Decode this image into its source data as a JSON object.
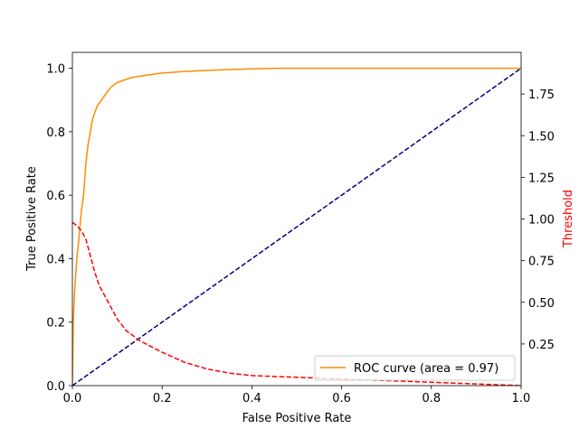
{
  "chart_data": {
    "type": "line",
    "title": "",
    "xlabel": "False Positive Rate",
    "ylabel": "True Positive Rate",
    "y2label": "Threshold",
    "xlim": [
      0.0,
      1.0
    ],
    "ylim": [
      0.0,
      1.05
    ],
    "y2lim": [
      0.0,
      2.0
    ],
    "x_ticks": [
      "0.0",
      "0.2",
      "0.4",
      "0.6",
      "0.8",
      "1.0"
    ],
    "y_ticks": [
      "0.0",
      "0.2",
      "0.4",
      "0.6",
      "0.8",
      "1.0"
    ],
    "y2_ticks": [
      "0.25",
      "0.50",
      "0.75",
      "1.00",
      "1.25",
      "1.50",
      "1.75"
    ],
    "grid": false,
    "legend_position": "lower-right",
    "series": [
      {
        "name": "ROC curve (area = 0.97)",
        "axis": "left",
        "color": "#ff8c00",
        "style": "solid",
        "x": [
          0.0,
          0.002,
          0.005,
          0.01,
          0.015,
          0.02,
          0.025,
          0.03,
          0.035,
          0.04,
          0.045,
          0.05,
          0.055,
          0.06,
          0.07,
          0.08,
          0.09,
          0.1,
          0.11,
          0.12,
          0.13,
          0.15,
          0.2,
          0.25,
          0.3,
          0.35,
          0.4,
          0.45,
          0.5,
          0.6,
          0.7,
          0.8,
          0.9,
          1.0
        ],
        "y": [
          0.0,
          0.2,
          0.3,
          0.4,
          0.47,
          0.55,
          0.6,
          0.7,
          0.76,
          0.8,
          0.84,
          0.86,
          0.88,
          0.89,
          0.91,
          0.93,
          0.945,
          0.955,
          0.96,
          0.965,
          0.97,
          0.975,
          0.985,
          0.99,
          0.993,
          0.996,
          0.998,
          1.0,
          1.0,
          1.0,
          1.0,
          1.0,
          1.0,
          1.0
        ]
      },
      {
        "name": "",
        "axis": "left",
        "color": "#000080",
        "style": "dashed",
        "x": [
          0.0,
          1.0
        ],
        "y": [
          0.0,
          1.0
        ]
      },
      {
        "name": "",
        "axis": "right",
        "color": "#ff0000",
        "style": "dashed",
        "x": [
          0.0,
          0.01,
          0.02,
          0.03,
          0.04,
          0.05,
          0.06,
          0.08,
          0.1,
          0.12,
          0.15,
          0.2,
          0.25,
          0.3,
          0.35,
          0.4,
          0.45,
          0.5,
          0.6,
          0.7,
          0.8,
          0.9,
          1.0
        ],
        "y": [
          0.98,
          0.96,
          0.93,
          0.88,
          0.78,
          0.68,
          0.6,
          0.5,
          0.4,
          0.33,
          0.27,
          0.2,
          0.14,
          0.1,
          0.075,
          0.06,
          0.055,
          0.05,
          0.04,
          0.03,
          0.02,
          0.01,
          0.0
        ]
      }
    ]
  }
}
